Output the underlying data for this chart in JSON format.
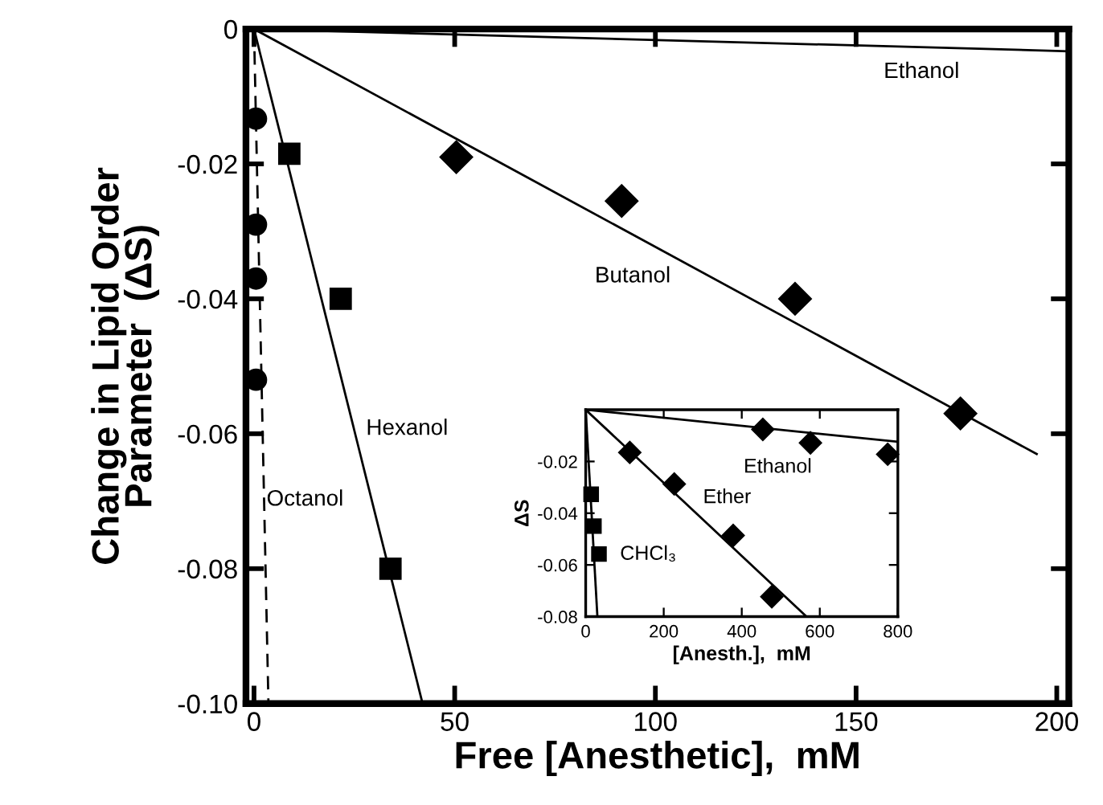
{
  "chart_data": [
    {
      "type": "scatter",
      "xlabel": "Free [Anesthetic],  mM",
      "ylabel": "Change in Lipid Order\nParameter  (ΔS)",
      "xlim": [
        -2,
        203
      ],
      "ylim": [
        -0.1,
        0
      ],
      "xticks": [
        0,
        50,
        100,
        150,
        200
      ],
      "yticks": [
        {
          "value": 0,
          "label": "0"
        },
        {
          "value": -0.02,
          "label": "-0.02"
        },
        {
          "value": -0.04,
          "label": "-0.04"
        },
        {
          "value": -0.06,
          "label": "-0.06"
        },
        {
          "value": -0.08,
          "label": "-0.08"
        },
        {
          "value": -0.1,
          "label": "-0.10"
        }
      ],
      "series": [
        {
          "marker": "circle",
          "color": "#000000",
          "x": [
            0.5,
            0.5,
            0.5,
            0.5
          ],
          "values": [
            -0.0133,
            -0.029,
            -0.037,
            -0.052
          ]
        },
        {
          "type": "line",
          "name": "Octanol",
          "line_style": "dashed",
          "color": "#000000",
          "x": [
            0,
            3.6
          ],
          "values": [
            0,
            -0.1
          ]
        },
        {
          "marker": "square",
          "color": "#000000",
          "x": [
            8.8,
            21.6,
            34
          ],
          "values": [
            -0.0185,
            -0.04,
            -0.08
          ]
        },
        {
          "type": "line",
          "name": "Hexanol",
          "line_style": "solid",
          "color": "#000000",
          "x": [
            0,
            42
          ],
          "values": [
            0,
            -0.1
          ]
        },
        {
          "marker": "diamond",
          "color": "#000000",
          "x": [
            50.4,
            91.6,
            134.8,
            176
          ],
          "values": [
            -0.019,
            -0.0255,
            -0.04,
            -0.057
          ]
        },
        {
          "type": "line",
          "name": "Butanol",
          "line_style": "solid",
          "color": "#000000",
          "x": [
            0,
            195
          ],
          "values": [
            0,
            -0.063
          ]
        },
        {
          "type": "line",
          "name": "Ethanol",
          "line_style": "solid",
          "color": "#000000",
          "x": [
            0,
            203
          ],
          "values": [
            0,
            -0.0033
          ]
        }
      ]
    },
    {
      "type": "scatter",
      "xlabel": "[Anesth.],  mM",
      "ylabel": "ΔS",
      "xlim": [
        0,
        800
      ],
      "ylim": [
        -0.08,
        0
      ],
      "xticks": [
        0,
        200,
        400,
        600,
        800
      ],
      "yticks": [
        {
          "value": -0.02,
          "label": "-0.02"
        },
        {
          "value": -0.04,
          "label": "-0.04"
        },
        {
          "value": -0.06,
          "label": "-0.06"
        },
        {
          "value": -0.08,
          "label": "-0.08"
        }
      ],
      "series": [
        {
          "marker": "diamond",
          "color": "#000000",
          "x": [
            454,
            576,
            774
          ],
          "values": [
            -0.0076,
            -0.0128,
            -0.0172
          ]
        },
        {
          "type": "line",
          "name": "Ethanol",
          "line_style": "solid",
          "color": "#000000",
          "x": [
            0,
            800
          ],
          "values": [
            0,
            -0.0124
          ]
        },
        {
          "marker": "diamond",
          "color": "#000000",
          "x": [
            113,
            227,
            378,
            477
          ],
          "values": [
            -0.0165,
            -0.0287,
            -0.0486,
            -0.0723
          ]
        },
        {
          "type": "line",
          "name": "Ether",
          "line_style": "solid",
          "color": "#000000",
          "x": [
            0,
            566
          ],
          "values": [
            0,
            -0.08
          ]
        },
        {
          "marker": "square",
          "color": "#000000",
          "x": [
            14,
            21,
            34
          ],
          "values": [
            -0.0327,
            -0.045,
            -0.0558
          ]
        },
        {
          "type": "line",
          "name": "CHCl₃",
          "line_style": "solid",
          "color": "#000000",
          "x": [
            0,
            30
          ],
          "values": [
            0,
            -0.08
          ]
        }
      ]
    }
  ]
}
